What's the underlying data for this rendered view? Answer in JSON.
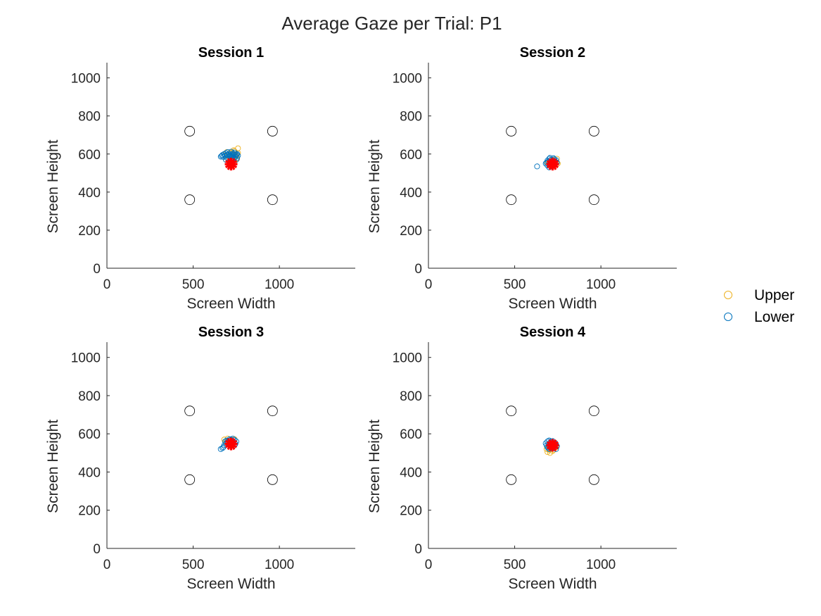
{
  "figure_title": "Average Gaze per Trial: P1",
  "legend": {
    "entries": [
      {
        "label": "Upper",
        "color": "#EDB120"
      },
      {
        "label": "Lower",
        "color": "#0072BD"
      }
    ],
    "placement": "right"
  },
  "colors": {
    "upper": "#EDB120",
    "lower": "#0072BD",
    "target_marker": "#FF0000",
    "reference_circle": "#000000",
    "axis": "#262626"
  },
  "chart_data": [
    {
      "type": "scatter",
      "title": "Session 1",
      "xlabel": "Screen Width",
      "ylabel": "Screen Height",
      "xlim": [
        0,
        1440
      ],
      "ylim": [
        0,
        1080
      ],
      "xticks": [
        0,
        500,
        1000
      ],
      "yticks": [
        0,
        200,
        400,
        600,
        800,
        1000
      ],
      "grid": false,
      "reference_points": [
        [
          480,
          720
        ],
        [
          960,
          720
        ],
        [
          480,
          360
        ],
        [
          960,
          360
        ]
      ],
      "target_point": [
        720,
        547
      ],
      "series": [
        {
          "name": "Upper",
          "color": "#EDB120",
          "points": [
            [
              700,
              595
            ],
            [
              720,
              605
            ],
            [
              740,
              615
            ],
            [
              760,
              630
            ],
            [
              735,
              600
            ],
            [
              710,
              580
            ],
            [
              750,
              590
            ],
            [
              690,
              570
            ],
            [
              725,
              610
            ],
            [
              745,
              585
            ],
            [
              715,
              560
            ],
            [
              680,
              600
            ],
            [
              760,
              605
            ],
            [
              705,
              590
            ],
            [
              730,
              575
            ],
            [
              695,
              610
            ],
            [
              740,
              560
            ],
            [
              755,
              575
            ],
            [
              720,
              550
            ],
            [
              735,
              620
            ]
          ]
        },
        {
          "name": "Lower",
          "color": "#0072BD",
          "points": [
            [
              670,
              595
            ],
            [
              680,
              600
            ],
            [
              690,
              605
            ],
            [
              700,
              598
            ],
            [
              710,
              592
            ],
            [
              720,
              590
            ],
            [
              730,
              596
            ],
            [
              740,
              600
            ],
            [
              750,
              598
            ],
            [
              760,
              592
            ],
            [
              675,
              585
            ],
            [
              685,
              590
            ],
            [
              695,
              580
            ],
            [
              705,
              575
            ],
            [
              715,
              570
            ],
            [
              725,
              582
            ],
            [
              735,
              578
            ],
            [
              745,
              585
            ],
            [
              755,
              580
            ],
            [
              665,
              590
            ],
            [
              700,
              610
            ],
            [
              720,
              612
            ],
            [
              740,
              608
            ],
            [
              690,
              570
            ],
            [
              710,
              560
            ],
            [
              730,
              565
            ],
            [
              750,
              570
            ],
            [
              710,
              600
            ],
            [
              730,
              603
            ],
            [
              745,
              593
            ],
            [
              755,
              600
            ],
            [
              660,
              586
            ],
            [
              715,
              585
            ],
            [
              725,
              572
            ],
            [
              695,
              595
            ]
          ]
        }
      ]
    },
    {
      "type": "scatter",
      "title": "Session 2",
      "xlabel": "Screen Width",
      "ylabel": "Screen Height",
      "xlim": [
        0,
        1440
      ],
      "ylim": [
        0,
        1080
      ],
      "xticks": [
        0,
        500,
        1000
      ],
      "yticks": [
        0,
        200,
        400,
        600,
        800,
        1000
      ],
      "grid": false,
      "reference_points": [
        [
          480,
          720
        ],
        [
          960,
          720
        ],
        [
          480,
          360
        ],
        [
          960,
          360
        ]
      ],
      "target_point": [
        720,
        547
      ],
      "series": [
        {
          "name": "Upper",
          "color": "#EDB120",
          "points": [
            [
              700,
              560
            ],
            [
              720,
              570
            ],
            [
              740,
              555
            ],
            [
              710,
              545
            ],
            [
              730,
              540
            ],
            [
              750,
              550
            ],
            [
              690,
              555
            ],
            [
              725,
              565
            ],
            [
              745,
              575
            ],
            [
              715,
              535
            ]
          ]
        },
        {
          "name": "Lower",
          "color": "#0072BD",
          "points": [
            [
              630,
              535
            ],
            [
              680,
              550
            ],
            [
              690,
              565
            ],
            [
              700,
              575
            ],
            [
              710,
              570
            ],
            [
              720,
              565
            ],
            [
              730,
              572
            ],
            [
              740,
              568
            ],
            [
              700,
              545
            ],
            [
              710,
              540
            ],
            [
              690,
              540
            ],
            [
              720,
              555
            ],
            [
              735,
              560
            ],
            [
              705,
              580
            ],
            [
              725,
              578
            ],
            [
              695,
              560
            ],
            [
              715,
              550
            ],
            [
              730,
              545
            ],
            [
              700,
              530
            ],
            [
              745,
              555
            ],
            [
              685,
              555
            ],
            [
              712,
              562
            ],
            [
              722,
              548
            ]
          ]
        }
      ]
    },
    {
      "type": "scatter",
      "title": "Session 3",
      "xlabel": "Screen Width",
      "ylabel": "Screen Height",
      "xlim": [
        0,
        1440
      ],
      "ylim": [
        0,
        1080
      ],
      "xticks": [
        0,
        500,
        1000
      ],
      "yticks": [
        0,
        200,
        400,
        600,
        800,
        1000
      ],
      "grid": false,
      "reference_points": [
        [
          480,
          720
        ],
        [
          960,
          720
        ],
        [
          480,
          360
        ],
        [
          960,
          360
        ]
      ],
      "target_point": [
        720,
        547
      ],
      "series": [
        {
          "name": "Upper",
          "color": "#EDB120",
          "points": [
            [
              680,
              570
            ],
            [
              700,
              575
            ],
            [
              720,
              565
            ],
            [
              740,
              572
            ],
            [
              710,
              555
            ],
            [
              730,
              560
            ],
            [
              690,
              560
            ]
          ]
        },
        {
          "name": "Lower",
          "color": "#0072BD",
          "points": [
            [
              660,
              520
            ],
            [
              670,
              525
            ],
            [
              680,
              540
            ],
            [
              690,
              550
            ],
            [
              700,
              560
            ],
            [
              710,
              565
            ],
            [
              720,
              570
            ],
            [
              730,
              575
            ],
            [
              740,
              568
            ],
            [
              750,
              560
            ],
            [
              705,
              545
            ],
            [
              715,
              555
            ],
            [
              725,
              550
            ],
            [
              735,
              555
            ],
            [
              745,
              548
            ],
            [
              695,
              565
            ],
            [
              685,
              560
            ],
            [
              712,
              572
            ],
            [
              728,
              562
            ],
            [
              700,
              552
            ],
            [
              740,
              540
            ],
            [
              720,
              540
            ],
            [
              675,
              530
            ]
          ]
        }
      ]
    },
    {
      "type": "scatter",
      "title": "Session 4",
      "xlabel": "Screen Width",
      "ylabel": "Screen Height",
      "xlim": [
        0,
        1440
      ],
      "ylim": [
        0,
        1080
      ],
      "xticks": [
        0,
        500,
        1000
      ],
      "yticks": [
        0,
        200,
        400,
        600,
        800,
        1000
      ],
      "grid": false,
      "reference_points": [
        [
          480,
          720
        ],
        [
          960,
          720
        ],
        [
          480,
          360
        ],
        [
          960,
          360
        ]
      ],
      "target_point": [
        720,
        540
      ],
      "series": [
        {
          "name": "Upper",
          "color": "#EDB120",
          "points": [
            [
              690,
              505
            ],
            [
              700,
              515
            ],
            [
              710,
              520
            ],
            [
              720,
              510
            ],
            [
              730,
              525
            ],
            [
              740,
              530
            ],
            [
              685,
              520
            ],
            [
              705,
              500
            ],
            [
              725,
              515
            ],
            [
              735,
              545
            ],
            [
              695,
              535
            ]
          ]
        },
        {
          "name": "Lower",
          "color": "#0072BD",
          "points": [
            [
              680,
              550
            ],
            [
              690,
              560
            ],
            [
              700,
              565
            ],
            [
              710,
              560
            ],
            [
              720,
              555
            ],
            [
              730,
              550
            ],
            [
              740,
              545
            ],
            [
              690,
              530
            ],
            [
              700,
              520
            ],
            [
              710,
              525
            ],
            [
              720,
              530
            ],
            [
              730,
              535
            ],
            [
              745,
              535
            ],
            [
              685,
              540
            ],
            [
              695,
              545
            ],
            [
              705,
              550
            ],
            [
              715,
              540
            ],
            [
              725,
              545
            ],
            [
              735,
              552
            ],
            [
              700,
              540
            ],
            [
              710,
              548
            ],
            [
              720,
              562
            ],
            [
              695,
              525
            ],
            [
              740,
              520
            ]
          ]
        }
      ]
    }
  ]
}
